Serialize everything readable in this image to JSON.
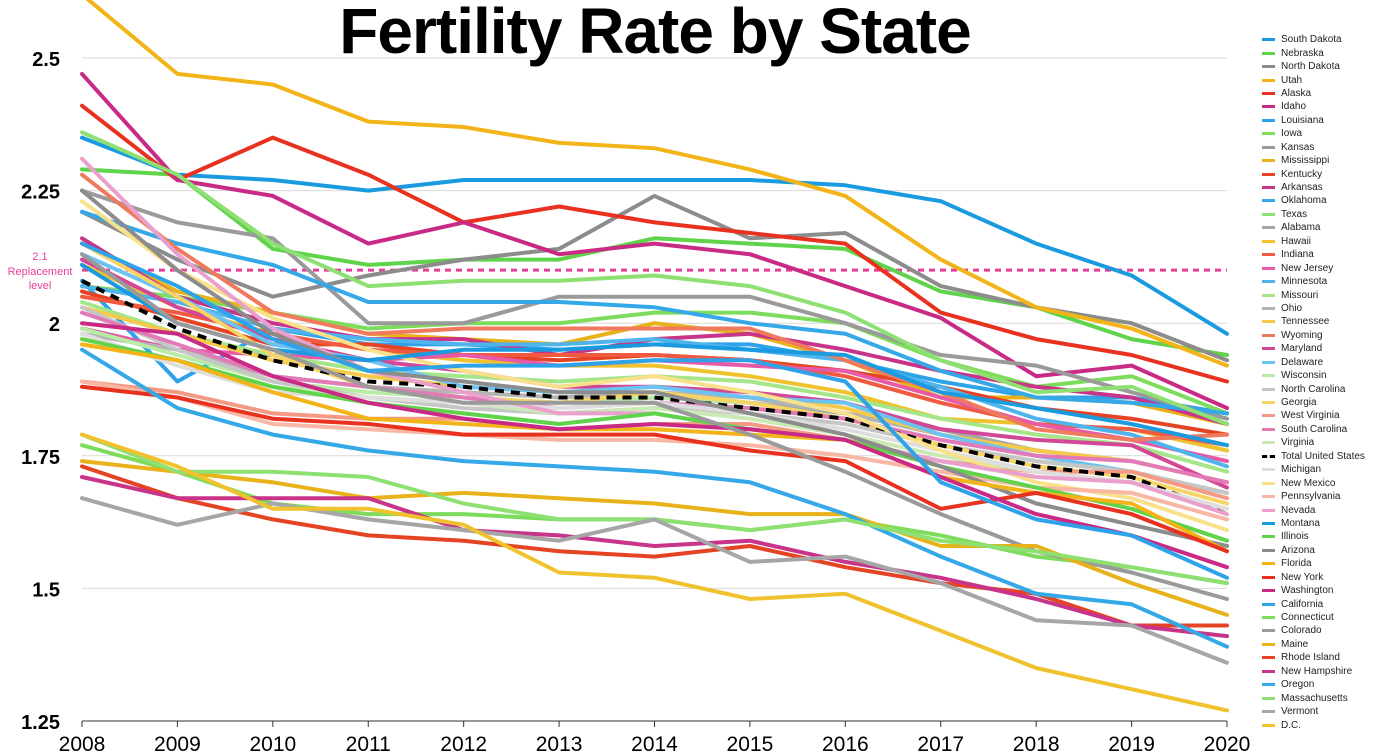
{
  "chart_data": {
    "type": "line",
    "title": "Fertility Rate by State",
    "xlabel": "",
    "ylabel": "",
    "x": [
      2008,
      2009,
      2010,
      2011,
      2012,
      2013,
      2014,
      2015,
      2016,
      2017,
      2018,
      2019,
      2020
    ],
    "ylim": [
      1.25,
      2.5
    ],
    "yticks": [
      "1.25",
      "1.5",
      "1.75",
      "2",
      "2.25",
      "2.5"
    ],
    "grid": true,
    "legend_position": "right",
    "reference_line": {
      "value": 2.1,
      "label_value": "2.1",
      "label_text": "Replacement",
      "label_text2": "level",
      "color": "#e83e9a"
    },
    "series": [
      {
        "name": "South Dakota",
        "color": "#1a9be0",
        "values": [
          2.35,
          2.28,
          2.27,
          2.25,
          2.27,
          2.27,
          2.27,
          2.27,
          2.26,
          2.23,
          2.15,
          2.09,
          1.98
        ]
      },
      {
        "name": "Nebraska",
        "color": "#5fd34a",
        "values": [
          2.29,
          2.28,
          2.14,
          2.11,
          2.12,
          2.12,
          2.16,
          2.15,
          2.14,
          2.06,
          2.03,
          1.97,
          1.94
        ]
      },
      {
        "name": "North Dakota",
        "color": "#8c8c8c",
        "values": [
          2.21,
          2.12,
          2.05,
          2.09,
          2.12,
          2.14,
          2.24,
          2.16,
          2.17,
          2.07,
          2.03,
          2.0,
          1.93
        ]
      },
      {
        "name": "Utah",
        "color": "#f2b418",
        "values": [
          2.62,
          2.47,
          2.45,
          2.38,
          2.37,
          2.34,
          2.33,
          2.29,
          2.24,
          2.12,
          2.03,
          1.99,
          1.92
        ]
      },
      {
        "name": "Alaska",
        "color": "#e8321f",
        "values": [
          2.41,
          2.27,
          2.35,
          2.28,
          2.19,
          2.22,
          2.19,
          2.17,
          2.15,
          2.02,
          1.97,
          1.94,
          1.89
        ]
      },
      {
        "name": "Idaho",
        "color": "#c82a85",
        "values": [
          2.47,
          2.27,
          2.24,
          2.15,
          2.19,
          2.13,
          2.15,
          2.13,
          2.07,
          2.01,
          1.9,
          1.92,
          1.84
        ]
      },
      {
        "name": "Louisiana",
        "color": "#2ea3ea",
        "values": [
          2.08,
          1.89,
          1.99,
          1.96,
          1.96,
          1.95,
          1.96,
          1.96,
          1.93,
          1.89,
          1.86,
          1.86,
          1.83
        ]
      },
      {
        "name": "Iowa",
        "color": "#7ddc5b",
        "values": [
          2.07,
          2.05,
          2.02,
          1.99,
          2.0,
          2.0,
          2.02,
          2.02,
          2.0,
          1.93,
          1.88,
          1.9,
          1.83
        ]
      },
      {
        "name": "Kansas",
        "color": "#9a9a9a",
        "values": [
          2.25,
          2.19,
          2.16,
          2.0,
          2.0,
          2.05,
          2.05,
          2.05,
          2.0,
          1.94,
          1.92,
          1.87,
          1.82
        ]
      },
      {
        "name": "Mississippi",
        "color": "#e8b21a",
        "values": [
          2.15,
          2.06,
          2.02,
          1.98,
          1.97,
          1.96,
          2.0,
          1.98,
          1.93,
          1.86,
          1.86,
          1.85,
          1.81
        ]
      },
      {
        "name": "Kentucky",
        "color": "#e54424",
        "values": [
          2.06,
          2.01,
          1.96,
          1.96,
          1.94,
          1.93,
          1.94,
          1.93,
          1.91,
          1.88,
          1.84,
          1.82,
          1.79
        ]
      },
      {
        "name": "Arkansas",
        "color": "#c8348a",
        "values": [
          2.16,
          2.05,
          2.0,
          1.97,
          1.97,
          1.94,
          1.97,
          1.98,
          1.95,
          1.91,
          1.88,
          1.86,
          1.81
        ]
      },
      {
        "name": "Oklahoma",
        "color": "#35a8e8",
        "values": [
          2.21,
          2.15,
          2.11,
          2.04,
          2.04,
          2.04,
          2.03,
          2.0,
          1.98,
          1.91,
          1.86,
          1.85,
          1.83
        ]
      },
      {
        "name": "Texas",
        "color": "#8ee072",
        "values": [
          2.36,
          2.28,
          2.15,
          2.07,
          2.08,
          2.08,
          2.09,
          2.07,
          2.02,
          1.93,
          1.87,
          1.88,
          1.81
        ]
      },
      {
        "name": "Alabama",
        "color": "#a6a6a6",
        "values": [
          1.99,
          1.95,
          1.9,
          1.88,
          1.86,
          1.85,
          1.86,
          1.85,
          1.83,
          1.8,
          1.76,
          1.74,
          1.7
        ]
      },
      {
        "name": "Hawaii",
        "color": "#f0c22e",
        "values": [
          2.11,
          2.03,
          1.98,
          1.95,
          1.93,
          1.92,
          1.92,
          1.9,
          1.87,
          1.82,
          1.81,
          1.8,
          1.76
        ]
      },
      {
        "name": "Indiana",
        "color": "#f05a40",
        "values": [
          2.05,
          2.02,
          1.98,
          1.95,
          1.94,
          1.94,
          1.94,
          1.93,
          1.9,
          1.85,
          1.81,
          1.8,
          1.77
        ]
      },
      {
        "name": "New Jersey",
        "color": "#e65aa8",
        "values": [
          1.99,
          1.95,
          1.94,
          1.93,
          1.94,
          1.92,
          1.93,
          1.92,
          1.91,
          1.86,
          1.81,
          1.78,
          1.74
        ]
      },
      {
        "name": "Minnesota",
        "color": "#4fb4ec",
        "values": [
          2.07,
          2.04,
          1.99,
          1.97,
          1.96,
          1.96,
          1.97,
          1.95,
          1.93,
          1.88,
          1.82,
          1.79,
          1.73
        ]
      },
      {
        "name": "Missouri",
        "color": "#a5e68a",
        "values": [
          2.04,
          1.98,
          1.94,
          1.91,
          1.9,
          1.89,
          1.9,
          1.89,
          1.86,
          1.82,
          1.79,
          1.77,
          1.72
        ]
      },
      {
        "name": "Ohio",
        "color": "#b4b4b4",
        "values": [
          1.98,
          1.95,
          1.9,
          1.88,
          1.87,
          1.86,
          1.87,
          1.86,
          1.83,
          1.79,
          1.76,
          1.74,
          1.7
        ]
      },
      {
        "name": "Tennessee",
        "color": "#f5c94a",
        "values": [
          2.03,
          1.98,
          1.93,
          1.9,
          1.88,
          1.87,
          1.88,
          1.87,
          1.84,
          1.79,
          1.76,
          1.74,
          1.7
        ]
      },
      {
        "name": "Wyoming",
        "color": "#f07a5e",
        "values": [
          2.28,
          2.14,
          2.02,
          1.98,
          1.99,
          1.99,
          1.99,
          1.99,
          1.93,
          1.87,
          1.8,
          1.78,
          1.79
        ]
      },
      {
        "name": "Maryland",
        "color": "#d24896",
        "values": [
          2.12,
          2.03,
          1.97,
          1.93,
          1.91,
          1.88,
          1.88,
          1.87,
          1.85,
          1.8,
          1.78,
          1.77,
          1.69
        ]
      },
      {
        "name": "Delaware",
        "color": "#6cc2f0",
        "values": [
          2.13,
          2.05,
          1.96,
          1.93,
          1.88,
          1.87,
          1.88,
          1.86,
          1.85,
          1.79,
          1.75,
          1.72,
          1.68
        ]
      },
      {
        "name": "Wisconsin",
        "color": "#b8eba4",
        "values": [
          1.99,
          1.94,
          1.89,
          1.87,
          1.86,
          1.85,
          1.86,
          1.85,
          1.82,
          1.77,
          1.74,
          1.72,
          1.68
        ]
      },
      {
        "name": "North Carolina",
        "color": "#c6c6c6",
        "values": [
          2.03,
          1.95,
          1.89,
          1.86,
          1.84,
          1.83,
          1.84,
          1.83,
          1.81,
          1.77,
          1.74,
          1.72,
          1.68
        ]
      },
      {
        "name": "Georgia",
        "color": "#f8d466",
        "values": [
          2.15,
          2.05,
          1.94,
          1.88,
          1.86,
          1.85,
          1.87,
          1.85,
          1.82,
          1.77,
          1.73,
          1.71,
          1.66
        ]
      },
      {
        "name": "West Virginia",
        "color": "#f49a84",
        "values": [
          1.89,
          1.87,
          1.83,
          1.82,
          1.82,
          1.8,
          1.81,
          1.81,
          1.78,
          1.74,
          1.72,
          1.72,
          1.67
        ]
      },
      {
        "name": "South Carolina",
        "color": "#e27ab8",
        "values": [
          2.02,
          1.96,
          1.9,
          1.88,
          1.86,
          1.84,
          1.85,
          1.84,
          1.82,
          1.78,
          1.75,
          1.74,
          1.7
        ]
      },
      {
        "name": "Virginia",
        "color": "#cbe9b4",
        "values": [
          1.96,
          1.93,
          1.88,
          1.86,
          1.85,
          1.83,
          1.84,
          1.82,
          1.79,
          1.75,
          1.72,
          1.7,
          1.65
        ]
      },
      {
        "name": "Total United States",
        "color": "#000000",
        "dashed": true,
        "values": [
          2.08,
          1.99,
          1.93,
          1.89,
          1.88,
          1.86,
          1.86,
          1.84,
          1.82,
          1.77,
          1.73,
          1.71,
          1.64
        ]
      },
      {
        "name": "Michigan",
        "color": "#dedede",
        "values": [
          1.98,
          1.92,
          1.87,
          1.86,
          1.85,
          1.84,
          1.85,
          1.83,
          1.8,
          1.76,
          1.72,
          1.7,
          1.65
        ]
      },
      {
        "name": "New Mexico",
        "color": "#f9e08a",
        "values": [
          2.23,
          2.1,
          2.01,
          1.95,
          1.91,
          1.88,
          1.9,
          1.87,
          1.83,
          1.76,
          1.7,
          1.67,
          1.61
        ]
      },
      {
        "name": "Pennsylvania",
        "color": "#f8b6a4",
        "values": [
          1.89,
          1.86,
          1.81,
          1.8,
          1.79,
          1.78,
          1.78,
          1.77,
          1.75,
          1.72,
          1.69,
          1.68,
          1.63
        ]
      },
      {
        "name": "Nevada",
        "color": "#eaa0cc",
        "values": [
          2.31,
          2.13,
          1.99,
          1.91,
          1.87,
          1.83,
          1.83,
          1.8,
          1.78,
          1.74,
          1.71,
          1.7,
          1.64
        ]
      },
      {
        "name": "Montana",
        "color": "#1a9be0",
        "values": [
          2.11,
          2.0,
          1.95,
          1.93,
          1.95,
          1.95,
          1.96,
          1.95,
          1.94,
          1.87,
          1.84,
          1.81,
          1.77
        ]
      },
      {
        "name": "Illinois",
        "color": "#5fd34a",
        "values": [
          1.97,
          1.93,
          1.88,
          1.85,
          1.83,
          1.81,
          1.83,
          1.8,
          1.78,
          1.73,
          1.69,
          1.65,
          1.59
        ]
      },
      {
        "name": "Arizona",
        "color": "#8c8c8c",
        "values": [
          2.25,
          2.1,
          1.98,
          1.91,
          1.89,
          1.87,
          1.87,
          1.83,
          1.79,
          1.73,
          1.66,
          1.62,
          1.58
        ]
      },
      {
        "name": "Florida",
        "color": "#f2b418",
        "values": [
          1.96,
          1.93,
          1.87,
          1.82,
          1.81,
          1.8,
          1.8,
          1.79,
          1.78,
          1.71,
          1.68,
          1.66,
          1.57
        ]
      },
      {
        "name": "New York",
        "color": "#e8321f",
        "values": [
          1.88,
          1.86,
          1.82,
          1.81,
          1.79,
          1.79,
          1.79,
          1.76,
          1.74,
          1.65,
          1.68,
          1.64,
          1.57
        ]
      },
      {
        "name": "Washington",
        "color": "#c82a85",
        "values": [
          2.0,
          1.98,
          1.9,
          1.85,
          1.82,
          1.8,
          1.81,
          1.8,
          1.78,
          1.71,
          1.64,
          1.6,
          1.54
        ]
      },
      {
        "name": "California",
        "color": "#2ea3ea",
        "values": [
          2.15,
          2.07,
          1.97,
          1.91,
          1.92,
          1.92,
          1.93,
          1.93,
          1.89,
          1.7,
          1.63,
          1.6,
          1.52
        ]
      },
      {
        "name": "Connecticut",
        "color": "#7ddc5b",
        "values": [
          1.77,
          1.72,
          1.66,
          1.64,
          1.64,
          1.63,
          1.63,
          1.61,
          1.63,
          1.6,
          1.56,
          1.54,
          1.51
        ]
      },
      {
        "name": "Colorado",
        "color": "#9a9a9a",
        "values": [
          2.13,
          2.0,
          1.95,
          1.88,
          1.85,
          1.85,
          1.85,
          1.79,
          1.72,
          1.64,
          1.57,
          1.53,
          1.48
        ]
      },
      {
        "name": "Maine",
        "color": "#e8b21a",
        "values": [
          1.74,
          1.72,
          1.7,
          1.67,
          1.68,
          1.67,
          1.66,
          1.64,
          1.64,
          1.58,
          1.58,
          1.51,
          1.45
        ]
      },
      {
        "name": "Rhode Island",
        "color": "#e54424",
        "values": [
          1.73,
          1.67,
          1.63,
          1.6,
          1.59,
          1.57,
          1.56,
          1.58,
          1.54,
          1.51,
          1.49,
          1.43,
          1.43
        ]
      },
      {
        "name": "New Hampshire",
        "color": "#c8348a",
        "values": [
          1.71,
          1.67,
          1.67,
          1.67,
          1.61,
          1.6,
          1.58,
          1.59,
          1.55,
          1.52,
          1.48,
          1.43,
          1.41
        ]
      },
      {
        "name": "Oregon",
        "color": "#35a8e8",
        "values": [
          1.95,
          1.84,
          1.79,
          1.76,
          1.74,
          1.73,
          1.72,
          1.7,
          1.64,
          1.56,
          1.49,
          1.47,
          1.39
        ]
      },
      {
        "name": "Massachusetts",
        "color": "#8ee072",
        "values": [
          1.79,
          1.72,
          1.72,
          1.71,
          1.66,
          1.63,
          1.63,
          1.61,
          1.63,
          1.59,
          1.57,
          1.54,
          1.51
        ]
      },
      {
        "name": "Vermont",
        "color": "#a6a6a6",
        "values": [
          1.67,
          1.62,
          1.66,
          1.63,
          1.61,
          1.59,
          1.63,
          1.55,
          1.56,
          1.51,
          1.44,
          1.43,
          1.36
        ]
      },
      {
        "name": "D.C.",
        "color": "#f0c22e",
        "values": [
          1.79,
          1.73,
          1.65,
          1.65,
          1.62,
          1.53,
          1.52,
          1.48,
          1.49,
          1.42,
          1.35,
          1.31,
          1.27
        ]
      }
    ]
  }
}
